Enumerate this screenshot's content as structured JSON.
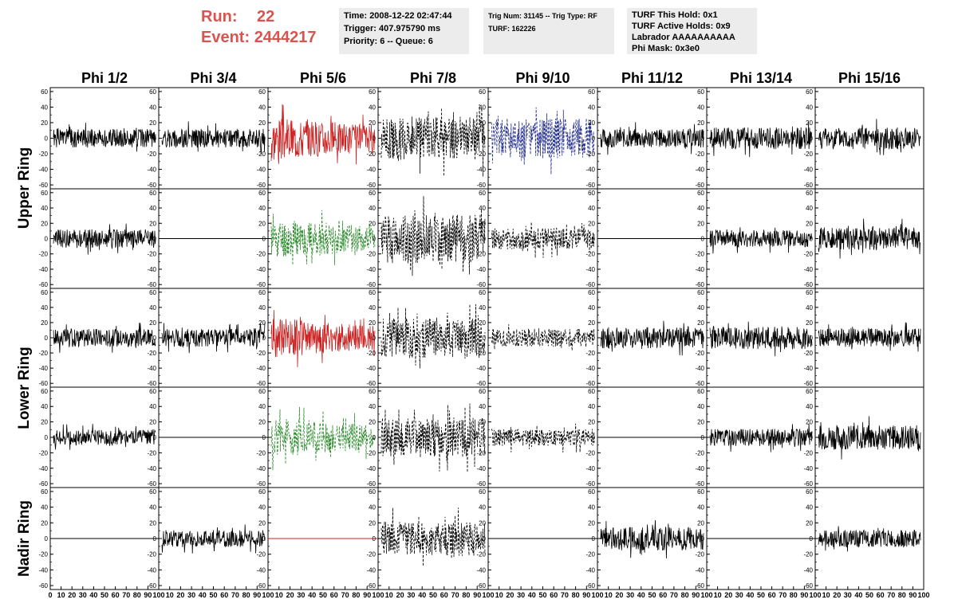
{
  "header": {
    "run_label": "Run:",
    "run_value": "22",
    "event_label": "Event:",
    "event_value": "2444217",
    "time_box": [
      "Time: 2008-12-22 02:47:44",
      "Trigger: 407.975790 ms",
      "Priority: 6 -- Queue: 6"
    ],
    "trig_box": [
      "Trig Num: 31145 -- Trig Type: RF",
      "",
      "TURF: 162226"
    ],
    "turf_box": [
      "TURF This Hold: 0x1",
      "TURF Active Holds: 0x9",
      "Labrador AAAAAAAAAA",
      "Phi Mask: 0x3e0"
    ],
    "accent_color": "#d9534f"
  },
  "chart_data": {
    "type": "line",
    "columns": [
      "Phi 1/2",
      "Phi 3/4",
      "Phi 5/6",
      "Phi 7/8",
      "Phi 9/10",
      "Phi 11/12",
      "Phi 13/14",
      "Phi 15/16"
    ],
    "row_labels": [
      "Upper Ring",
      "Lower Ring",
      "Nadir Ring"
    ],
    "y_ticks": [
      60,
      40,
      20,
      0,
      -20,
      -40,
      -60
    ],
    "x_tick_labels": [
      "0",
      "10",
      "20",
      "30",
      "40",
      "50",
      "60",
      "70",
      "80",
      "90",
      "100"
    ],
    "xlim": [
      0,
      100
    ],
    "ylim": [
      -65,
      65
    ],
    "colors": {
      "solid": "#000000",
      "red": "#cc2222",
      "green": "#2a8a2a",
      "blue": "#1e2a8c",
      "dashed": "#000000"
    },
    "panels": [
      [
        {
          "style": "solid",
          "amp": 12,
          "seed": 1
        },
        {
          "style": "solid",
          "amp": 12,
          "seed": 2
        },
        {
          "style": "red",
          "amp": 24,
          "seed": 3
        },
        {
          "style": "dashed",
          "amp": 28,
          "seed": 4
        },
        {
          "style": "blue",
          "amp": 26,
          "seed": 5
        },
        {
          "style": "solid",
          "amp": 12,
          "seed": 6
        },
        {
          "style": "solid",
          "amp": 14,
          "seed": 7
        },
        {
          "style": "solid",
          "amp": 14,
          "seed": 8
        }
      ],
      [
        {
          "style": "solid",
          "amp": 12,
          "seed": 9
        },
        {
          "style": "flat",
          "amp": 0,
          "seed": 10
        },
        {
          "style": "green",
          "amp": 22,
          "seed": 11
        },
        {
          "style": "dashed",
          "amp": 32,
          "seed": 12
        },
        {
          "style": "dashed",
          "amp": 14,
          "seed": 13
        },
        {
          "style": "flat",
          "amp": 0,
          "seed": 14
        },
        {
          "style": "solid",
          "amp": 11,
          "seed": 15
        },
        {
          "style": "solid",
          "amp": 15,
          "seed": 16
        }
      ],
      [
        {
          "style": "solid",
          "amp": 12,
          "seed": 17
        },
        {
          "style": "solid",
          "amp": 12,
          "seed": 18
        },
        {
          "style": "red",
          "amp": 22,
          "seed": 19
        },
        {
          "style": "dashed",
          "amp": 26,
          "seed": 20
        },
        {
          "style": "dashed",
          "amp": 12,
          "seed": 21
        },
        {
          "style": "solid",
          "amp": 14,
          "seed": 22
        },
        {
          "style": "solid",
          "amp": 15,
          "seed": 23
        },
        {
          "style": "solid",
          "amp": 12,
          "seed": 24
        }
      ],
      [
        {
          "style": "solid",
          "amp": 10,
          "seed": 25
        },
        {
          "style": "flat",
          "amp": 0,
          "seed": 26
        },
        {
          "style": "green",
          "amp": 22,
          "seed": 27
        },
        {
          "style": "dashed",
          "amp": 26,
          "seed": 28
        },
        {
          "style": "dashed",
          "amp": 11,
          "seed": 29
        },
        {
          "style": "flat",
          "amp": 0,
          "seed": 30
        },
        {
          "style": "solid",
          "amp": 11,
          "seed": 31
        },
        {
          "style": "solid",
          "amp": 16,
          "seed": 32
        }
      ],
      [
        {
          "style": "flat",
          "amp": 0,
          "seed": 33
        },
        {
          "style": "solid",
          "amp": 11,
          "seed": 34
        },
        {
          "style": "flatred",
          "amp": 0,
          "seed": 35
        },
        {
          "style": "dashed",
          "amp": 22,
          "seed": 36
        },
        {
          "style": "flat",
          "amp": 0,
          "seed": 37
        },
        {
          "style": "solid",
          "amp": 15,
          "seed": 38
        },
        {
          "style": "flat",
          "amp": 0,
          "seed": 39
        },
        {
          "style": "solid",
          "amp": 11,
          "seed": 40
        }
      ]
    ]
  }
}
